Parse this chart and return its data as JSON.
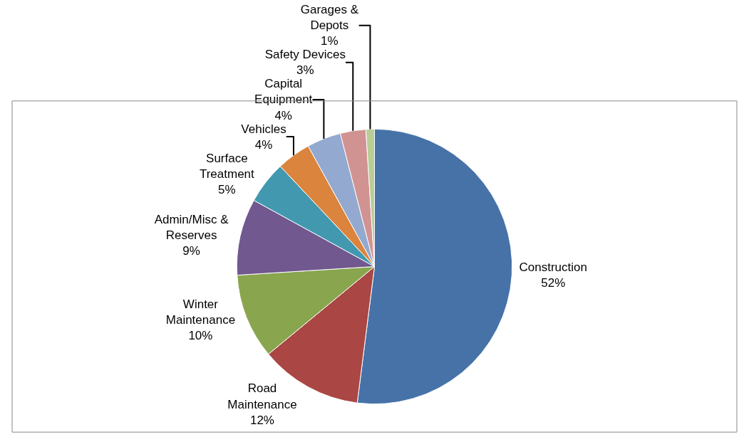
{
  "chart_data": {
    "type": "pie",
    "categories": [
      "Construction",
      "Road Maintenance",
      "Winter Maintenance",
      "Admin/Misc & Reserves",
      "Surface Treatment",
      "Vehicles",
      "Capital Equipment",
      "Safety Devices",
      "Garages & Depots"
    ],
    "values": [
      52,
      12,
      10,
      9,
      5,
      4,
      4,
      3,
      1
    ],
    "value_labels": [
      "52%",
      "12%",
      "10%",
      "9%",
      "5%",
      "4%",
      "4%",
      "3%",
      "1%"
    ],
    "colors": [
      "#4672a8",
      "#aa4643",
      "#89a54e",
      "#71588f",
      "#4198af",
      "#db843d",
      "#93a9cf",
      "#d19392",
      "#b9cd96"
    ],
    "legend": false
  }
}
